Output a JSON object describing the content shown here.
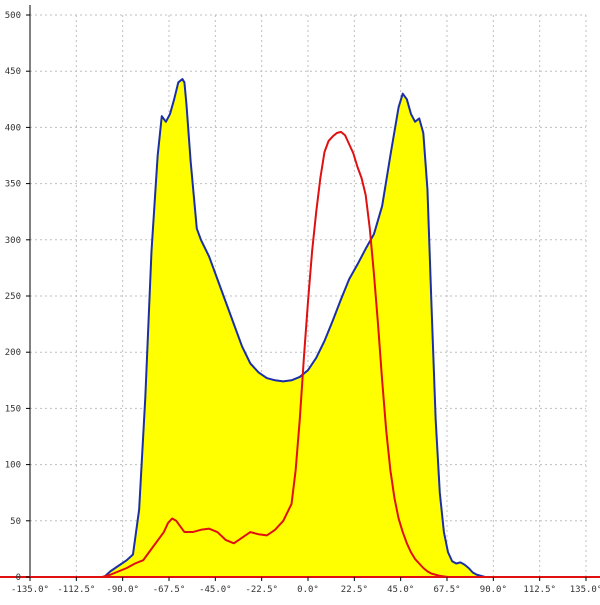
{
  "chart_data": {
    "type": "area",
    "x_unit": "°",
    "xlim": [
      -135,
      135
    ],
    "ylim": [
      0,
      500
    ],
    "x_ticks": [
      -135,
      -112.5,
      -90,
      -67.5,
      -45,
      -22.5,
      0,
      22.5,
      45,
      67.5,
      90,
      112.5,
      135
    ],
    "x_tick_labels": [
      "-135.0°",
      "-112.5°",
      "-90.0°",
      "-67.5°",
      "-45.0°",
      "-22.5°",
      "0.0°",
      "22.5°",
      "45.0°",
      "67.5°",
      "90.0°",
      "112.5°",
      "135.0°"
    ],
    "y_ticks": [
      0,
      50,
      100,
      150,
      200,
      250,
      300,
      350,
      400,
      450,
      500
    ],
    "y_tick_labels": [
      "0",
      "50",
      "100",
      "150",
      "200",
      "250",
      "300",
      "350",
      "400",
      "450",
      "500"
    ],
    "grid": true,
    "series": [
      {
        "color": "#1a2fa8",
        "fill": "#ffff00",
        "filled": true,
        "x": [
          -99,
          -96,
          -92,
          -88,
          -85,
          -82,
          -79,
          -76,
          -73,
          -71,
          -69,
          -67,
          -65,
          -63,
          -61,
          -60,
          -59,
          -57,
          -54,
          -52,
          -48,
          -44,
          -40,
          -36,
          -32,
          -28,
          -24,
          -20,
          -16,
          -12,
          -8,
          -4,
          0,
          4,
          8,
          12,
          16,
          20,
          24,
          28,
          32,
          36,
          40,
          44,
          46,
          48,
          50,
          52,
          54,
          56,
          58,
          60,
          62,
          64,
          66,
          68,
          70,
          72,
          74,
          76,
          78,
          80,
          82,
          84,
          86,
          88,
          90,
          92,
          94,
          96,
          98,
          100,
          102
        ],
        "y": [
          0,
          5,
          10,
          15,
          20,
          60,
          160,
          290,
          375,
          410,
          405,
          412,
          425,
          440,
          443,
          440,
          420,
          370,
          310,
          300,
          285,
          265,
          245,
          225,
          205,
          190,
          182,
          177,
          175,
          174,
          175,
          178,
          184,
          195,
          210,
          228,
          247,
          265,
          278,
          292,
          305,
          330,
          375,
          418,
          430,
          425,
          412,
          405,
          408,
          395,
          345,
          240,
          140,
          75,
          40,
          22,
          14,
          12,
          13,
          11,
          8,
          4,
          2,
          1,
          0,
          0,
          0,
          0,
          0,
          0,
          0,
          0,
          0
        ]
      },
      {
        "color": "#e01010",
        "filled": false,
        "x": [
          -135,
          -100,
          -96,
          -92,
          -88,
          -84,
          -80,
          -76,
          -72,
          -70,
          -68,
          -66,
          -64,
          -60,
          -56,
          -52,
          -48,
          -44,
          -40,
          -36,
          -32,
          -28,
          -24,
          -20,
          -16,
          -12,
          -8,
          -6,
          -4,
          -2,
          0,
          2,
          4,
          6,
          8,
          10,
          12,
          14,
          16,
          18,
          20,
          22,
          24,
          26,
          28,
          30,
          32,
          34,
          36,
          38,
          40,
          42,
          44,
          46,
          48,
          50,
          52,
          54,
          56,
          58,
          60,
          64,
          68,
          72,
          76,
          80,
          84,
          88,
          92,
          96,
          100,
          135
        ],
        "y": [
          0,
          0,
          2,
          5,
          8,
          12,
          15,
          25,
          35,
          40,
          48,
          52,
          50,
          40,
          40,
          42,
          43,
          40,
          33,
          30,
          35,
          40,
          38,
          37,
          42,
          50,
          65,
          95,
          140,
          195,
          245,
          290,
          325,
          355,
          378,
          388,
          392,
          395,
          396,
          393,
          385,
          377,
          365,
          355,
          340,
          310,
          270,
          225,
          175,
          130,
          95,
          70,
          52,
          40,
          30,
          22,
          16,
          12,
          8,
          5,
          3,
          1,
          0,
          0,
          0,
          0,
          0,
          0,
          0,
          0,
          0,
          0
        ]
      }
    ]
  }
}
